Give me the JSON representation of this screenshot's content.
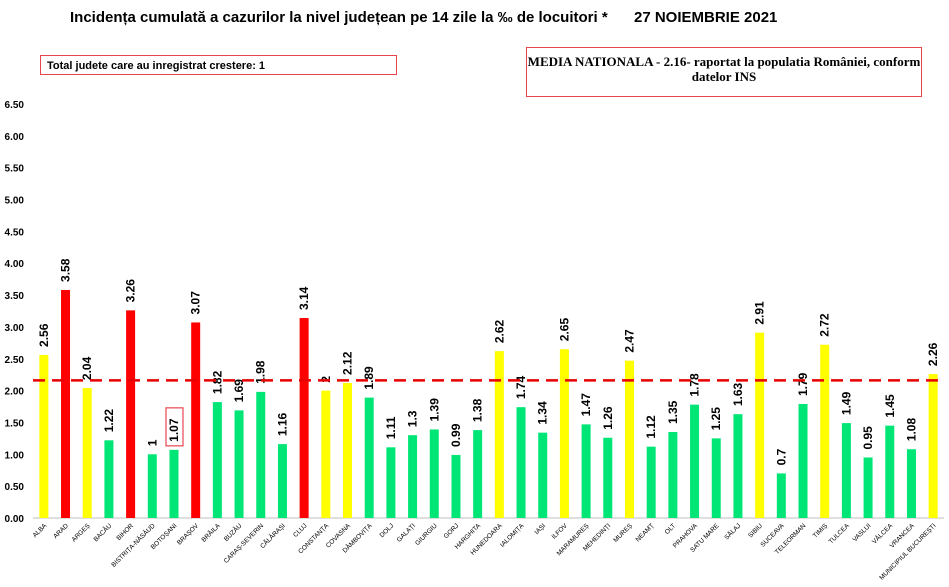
{
  "header": {
    "title": "Incidența cumulată a cazurilor la nivel județean pe 14 zile la ‰ de locuitori *",
    "date": "27 NOIEMBRIE 2021"
  },
  "notes": {
    "increase_box": "Total judete care au inregistrat crestere: 1",
    "national_average": "MEDIA NATIONALA - 2.16-  raportat la populatia României, conform datelor INS"
  },
  "colors": {
    "red": "#ff0000",
    "yellow": "#ffff00",
    "green": "#00e676",
    "average_line": "#e60000",
    "highlight_box": "#e8454f"
  },
  "chart_data": {
    "type": "bar",
    "ylim": [
      0,
      6.5
    ],
    "yticks": [
      "0.00",
      "0.50",
      "1.00",
      "1.50",
      "2.00",
      "2.50",
      "3.00",
      "3.50",
      "4.00",
      "4.50",
      "5.00",
      "5.50",
      "6.00",
      "6.50"
    ],
    "reference_line": 2.16,
    "highlighted_label": "1.07",
    "grid": false,
    "categories": [
      "ALBA",
      "ARAD",
      "ARGEȘ",
      "BACĂU",
      "BIHOR",
      "BISTRIȚA-NĂSĂUD",
      "BOTOȘANI",
      "BRAȘOV",
      "BRĂILA",
      "BUZĂU",
      "CARAȘ-SEVERIN",
      "CĂLĂRAȘI",
      "CLUJ",
      "CONSTANȚA",
      "COVASNA",
      "DÂMBOVIȚA",
      "DOLJ",
      "GALAȚI",
      "GIURGIU",
      "GORJ",
      "HARGHITA",
      "HUNEDOARA",
      "IALOMIȚA",
      "IAȘI",
      "ILFOV",
      "MARAMUREȘ",
      "MEHEDINȚI",
      "MUREȘ",
      "NEAMȚ",
      "OLT",
      "PRAHOVA",
      "SATU MARE",
      "SĂLAJ",
      "SIBIU",
      "SUCEAVA",
      "TELEORMAN",
      "TIMIȘ",
      "TULCEA",
      "VASLUI",
      "VÂLCEA",
      "VRANCEA",
      "MUNICIPIUL BUCUREȘTI"
    ],
    "values": [
      2.56,
      3.58,
      2.04,
      1.22,
      3.26,
      1,
      1.07,
      3.07,
      1.82,
      1.69,
      1.98,
      1.16,
      3.14,
      2,
      2.12,
      1.89,
      1.11,
      1.3,
      1.39,
      0.99,
      1.38,
      2.62,
      1.74,
      1.34,
      2.65,
      1.47,
      1.26,
      2.47,
      1.12,
      1.35,
      1.78,
      1.25,
      1.63,
      2.91,
      0.7,
      1.79,
      2.72,
      1.49,
      0.95,
      1.45,
      1.08,
      2.26
    ],
    "value_labels": [
      "2.56",
      "3.58",
      "2.04",
      "1.22",
      "3.26",
      "1",
      "1.07",
      "3.07",
      "1.82",
      "1.69",
      "1.98",
      "1.16",
      "3.14",
      "2",
      "2.12",
      "1.89",
      "1.11",
      "1.3",
      "1.39",
      "0.99",
      "1.38",
      "2.62",
      "1.74",
      "1.34",
      "2.65",
      "1.47",
      "1.26",
      "2.47",
      "1.12",
      "1.35",
      "1.78",
      "1.25",
      "1.63",
      "2.91",
      "0.7",
      "1.79",
      "2.72",
      "1.49",
      "0.95",
      "1.45",
      "1.08",
      "2.26"
    ],
    "bar_colors": [
      "yellow",
      "red",
      "yellow",
      "green",
      "red",
      "green",
      "green",
      "red",
      "green",
      "green",
      "green",
      "green",
      "red",
      "yellow",
      "yellow",
      "green",
      "green",
      "green",
      "green",
      "green",
      "green",
      "yellow",
      "green",
      "green",
      "yellow",
      "green",
      "green",
      "yellow",
      "green",
      "green",
      "green",
      "green",
      "green",
      "yellow",
      "green",
      "green",
      "yellow",
      "green",
      "green",
      "green",
      "green",
      "yellow"
    ]
  }
}
